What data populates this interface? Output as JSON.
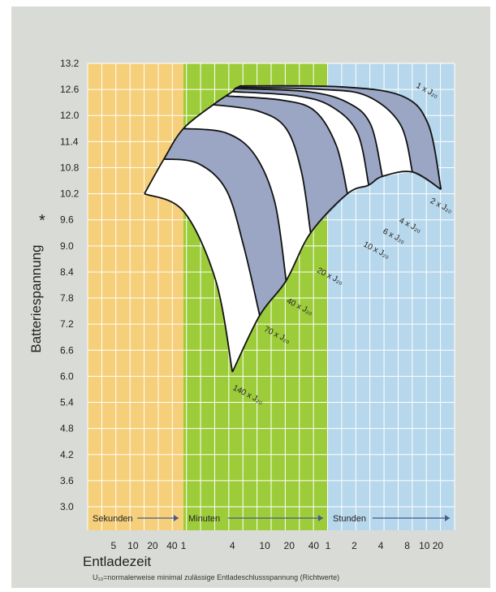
{
  "chart_data": {
    "type": "area",
    "ylabel": "Batteriespannung",
    "ylabel_marker": "*",
    "xlabel": "Entladezeit",
    "footnote": "U₁₀=normalerweise minimal zulässige Entladeschlussspannung (Richtwerte)",
    "y_ticks": [
      "13.2",
      "12.6",
      "12.0",
      "11.4",
      "10.8",
      "10.2",
      "9.6",
      "9.0",
      "8.4",
      "7.8",
      "7.2",
      "6.6",
      "6.0",
      "5.4",
      "4.8",
      "4.2",
      "3.6",
      "3.0"
    ],
    "ylim": [
      3.0,
      13.2
    ],
    "x_ticks": [
      {
        "label": "5",
        "t": 5
      },
      {
        "label": "10",
        "t": 10
      },
      {
        "label": "20",
        "t": 20
      },
      {
        "label": "40",
        "t": 40
      },
      {
        "label": "1",
        "t": 60
      },
      {
        "label": "4",
        "t": 240
      },
      {
        "label": "10",
        "t": 600
      },
      {
        "label": "20",
        "t": 1200
      },
      {
        "label": "40",
        "t": 2400
      },
      {
        "label": "1",
        "t": 3600
      },
      {
        "label": "2",
        "t": 7200
      },
      {
        "label": "4",
        "t": 14400
      },
      {
        "label": "8",
        "t": 28800
      },
      {
        "label": "10 20",
        "t": 54000
      }
    ],
    "x_unit": "seconds",
    "xlim": [
      2,
      100000
    ],
    "zones": [
      {
        "label": "Sekunden",
        "from": 2,
        "to": 60,
        "color": "#f5cf7a"
      },
      {
        "label": "Minuten",
        "from": 60,
        "to": 3600,
        "color": "#9dcc3a"
      },
      {
        "label": "Stunden",
        "from": 3600,
        "to": 100000,
        "color": "#b7d7ec"
      }
    ],
    "colors": {
      "band_white": "#ffffff",
      "band_blue": "#9aa6c4",
      "outline": "#111111",
      "grid": "#ffffff"
    },
    "series": [
      {
        "name": "140 x J₂₀",
        "points": [
          [
            15,
            10.2
          ],
          [
            60,
            9.8
          ],
          [
            150,
            8.2
          ],
          [
            240,
            6.1
          ]
        ]
      },
      {
        "name": "70 x J₂₀",
        "points": [
          [
            30,
            11.0
          ],
          [
            90,
            10.9
          ],
          [
            200,
            10.3
          ],
          [
            330,
            9.0
          ],
          [
            520,
            7.4
          ]
        ]
      },
      {
        "name": "40 x J₂₀",
        "points": [
          [
            60,
            11.7
          ],
          [
            200,
            11.6
          ],
          [
            450,
            11.1
          ],
          [
            800,
            10.0
          ],
          [
            1100,
            8.2
          ]
        ]
      },
      {
        "name": "20 x J₂₀",
        "points": [
          [
            140,
            12.25
          ],
          [
            500,
            12.1
          ],
          [
            1100,
            11.7
          ],
          [
            1700,
            10.7
          ],
          [
            2200,
            9.3
          ]
        ]
      },
      {
        "name": "10 x J₂₀",
        "points": [
          [
            200,
            12.45
          ],
          [
            1000,
            12.35
          ],
          [
            2500,
            12.1
          ],
          [
            4500,
            11.3
          ],
          [
            6000,
            10.2
          ]
        ]
      },
      {
        "name": "6 x J₂₀",
        "points": [
          [
            240,
            12.55
          ],
          [
            1500,
            12.45
          ],
          [
            4000,
            12.2
          ],
          [
            7800,
            11.6
          ],
          [
            10500,
            10.4
          ]
        ]
      },
      {
        "name": "4 x J₂₀",
        "points": [
          [
            260,
            12.62
          ],
          [
            2000,
            12.55
          ],
          [
            6000,
            12.3
          ],
          [
            11000,
            11.8
          ],
          [
            15000,
            10.6
          ]
        ]
      },
      {
        "name": "2 x J₂₀",
        "points": [
          [
            280,
            12.65
          ],
          [
            3000,
            12.6
          ],
          [
            10000,
            12.45
          ],
          [
            24000,
            11.8
          ],
          [
            33000,
            10.7
          ]
        ]
      },
      {
        "name": "1 x J₂₀",
        "points": [
          [
            300,
            12.68
          ],
          [
            5000,
            12.66
          ],
          [
            25000,
            12.45
          ],
          [
            50000,
            11.8
          ],
          [
            70000,
            10.3
          ]
        ]
      }
    ],
    "cutoff_curve": [
      [
        240,
        6.1
      ],
      [
        520,
        7.4
      ],
      [
        1100,
        8.2
      ],
      [
        2200,
        9.3
      ],
      [
        6000,
        10.2
      ],
      [
        10500,
        10.4
      ],
      [
        15000,
        10.6
      ],
      [
        33000,
        10.7
      ],
      [
        70000,
        10.3
      ]
    ],
    "series_labels": [
      {
        "text": "1 x J₂₀",
        "t": 36000,
        "v": 12.65,
        "rot": 27
      },
      {
        "text": "2 x J₂₀",
        "t": 52000,
        "v": 10.0,
        "rot": 27
      },
      {
        "text": "4 x J₂₀",
        "t": 23000,
        "v": 9.55,
        "rot": 27
      },
      {
        "text": "6 x J₂₀",
        "t": 15000,
        "v": 9.3,
        "rot": 27
      },
      {
        "text": "10 x J₂₀",
        "t": 9000,
        "v": 9.0,
        "rot": 27
      },
      {
        "text": "20 x J₂₀",
        "t": 2600,
        "v": 8.4,
        "rot": 27
      },
      {
        "text": "40 x J₂₀",
        "t": 1100,
        "v": 7.7,
        "rot": 27
      },
      {
        "text": "70 x J₂₀",
        "t": 580,
        "v": 7.05,
        "rot": 27
      },
      {
        "text": "140 x J₂₀",
        "t": 240,
        "v": 5.7,
        "rot": 27
      }
    ]
  }
}
